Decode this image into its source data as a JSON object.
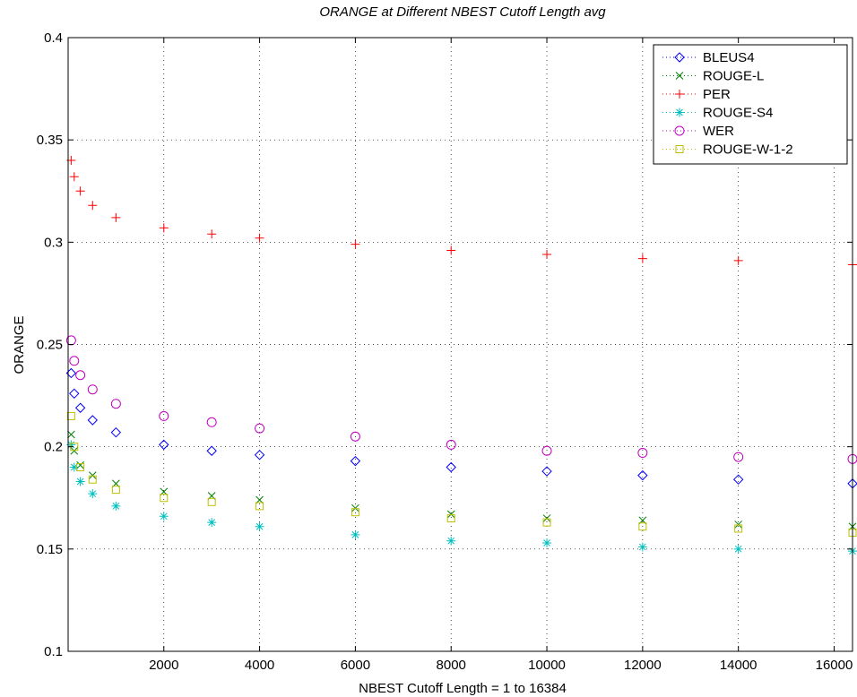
{
  "chart_data": {
    "type": "scatter",
    "title": "ORANGE at Different NBEST Cutoff Length avg",
    "xlabel": "NBEST Cutoff Length = 1 to 16384",
    "ylabel": "ORANGE",
    "xlim": [
      1,
      16384
    ],
    "ylim": [
      0.1,
      0.4
    ],
    "x_ticks": [
      2000,
      4000,
      6000,
      8000,
      10000,
      12000,
      14000,
      16000
    ],
    "x_tick_labels": [
      "2000",
      "4000",
      "6000",
      "8000",
      "10000",
      "12000",
      "14000",
      "16000"
    ],
    "y_ticks": [
      0.1,
      0.15,
      0.2,
      0.25,
      0.3,
      0.35,
      0.4
    ],
    "y_tick_labels": [
      "0.1",
      "0.15",
      "0.2",
      "0.25",
      "0.3",
      "0.35",
      "0.4"
    ],
    "grid": true,
    "legend_position": "top-right",
    "series": [
      {
        "name": "BLEUS4",
        "marker": "diamond",
        "color": "#0000ff",
        "x": [
          64,
          128,
          256,
          512,
          1000,
          2000,
          3000,
          4000,
          6000,
          8000,
          10000,
          12000,
          14000,
          16384
        ],
        "y": [
          0.236,
          0.226,
          0.219,
          0.213,
          0.207,
          0.201,
          0.198,
          0.196,
          0.193,
          0.19,
          0.188,
          0.186,
          0.184,
          0.182
        ]
      },
      {
        "name": "ROUGE-L",
        "marker": "x",
        "color": "#008000",
        "x": [
          64,
          128,
          256,
          512,
          1000,
          2000,
          3000,
          4000,
          6000,
          8000,
          10000,
          12000,
          14000,
          16384
        ],
        "y": [
          0.206,
          0.198,
          0.191,
          0.186,
          0.182,
          0.178,
          0.176,
          0.174,
          0.17,
          0.167,
          0.165,
          0.164,
          0.162,
          0.161
        ]
      },
      {
        "name": "PER",
        "marker": "plus",
        "color": "#ff0000",
        "x": [
          64,
          128,
          256,
          512,
          1000,
          2000,
          3000,
          4000,
          6000,
          8000,
          10000,
          12000,
          14000,
          16384
        ],
        "y": [
          0.34,
          0.332,
          0.325,
          0.318,
          0.312,
          0.307,
          0.304,
          0.302,
          0.299,
          0.296,
          0.294,
          0.292,
          0.291,
          0.289
        ]
      },
      {
        "name": "ROUGE-S4",
        "marker": "asterisk",
        "color": "#00bfbf",
        "x": [
          64,
          128,
          256,
          512,
          1000,
          2000,
          3000,
          4000,
          6000,
          8000,
          10000,
          12000,
          14000,
          16384
        ],
        "y": [
          0.201,
          0.19,
          0.183,
          0.177,
          0.171,
          0.166,
          0.163,
          0.161,
          0.157,
          0.154,
          0.153,
          0.151,
          0.15,
          0.149
        ]
      },
      {
        "name": "WER",
        "marker": "circle",
        "color": "#bf00bf",
        "x": [
          64,
          128,
          256,
          512,
          1000,
          2000,
          3000,
          4000,
          6000,
          8000,
          10000,
          12000,
          14000,
          16384
        ],
        "y": [
          0.252,
          0.242,
          0.235,
          0.228,
          0.221,
          0.215,
          0.212,
          0.209,
          0.205,
          0.201,
          0.198,
          0.197,
          0.195,
          0.194
        ]
      },
      {
        "name": "ROUGE-W-1-2",
        "marker": "square",
        "color": "#bfbf00",
        "x": [
          64,
          128,
          256,
          512,
          1000,
          2000,
          3000,
          4000,
          6000,
          8000,
          10000,
          12000,
          14000,
          16384
        ],
        "y": [
          0.215,
          0.2,
          0.19,
          0.184,
          0.179,
          0.175,
          0.173,
          0.171,
          0.168,
          0.165,
          0.163,
          0.161,
          0.16,
          0.158
        ]
      }
    ]
  }
}
